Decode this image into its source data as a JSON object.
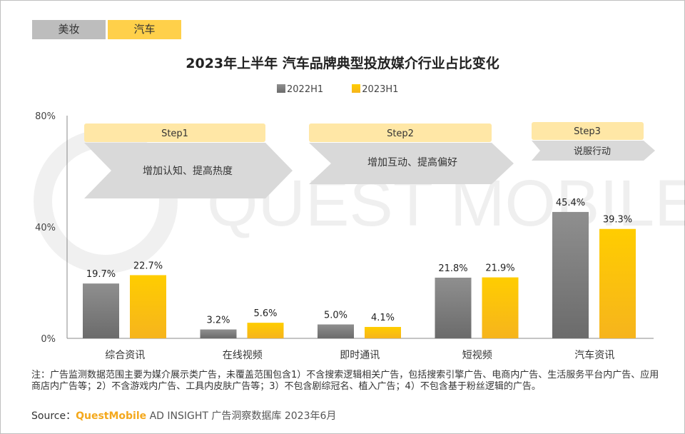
{
  "tabs": [
    {
      "label": "美妆",
      "active": false
    },
    {
      "label": "汽车",
      "active": true
    }
  ],
  "title": "2023年上半年 汽车品牌典型投放媒介行业占比变化",
  "watermark": "QUEST MOBILE",
  "colors": {
    "series_2022": "#7f7f7f",
    "series_2023": "#ffc61a",
    "step_label": "#ffe7a6",
    "step_arrow": "#d9d9d9"
  },
  "steps": [
    {
      "label": "Step1",
      "text": "增加认知、提高热度"
    },
    {
      "label": "Step2",
      "text": "增加互动、提高偏好"
    },
    {
      "label": "Step3",
      "text": "说服行动"
    }
  ],
  "chart_data": {
    "type": "bar",
    "categories": [
      "综合资讯",
      "在线视频",
      "即时通讯",
      "短视频",
      "汽车资讯"
    ],
    "series": [
      {
        "name": "2022H1",
        "values": [
          19.7,
          3.2,
          5.0,
          21.8,
          45.4
        ],
        "labels": [
          "19.7%",
          "3.2%",
          "5.0%",
          "21.8%",
          "45.4%"
        ]
      },
      {
        "name": "2023H1",
        "values": [
          22.7,
          5.6,
          4.1,
          21.9,
          39.3
        ],
        "labels": [
          "22.7%",
          "5.6%",
          "4.1%",
          "21.9%",
          "39.3%"
        ]
      }
    ],
    "yticks": [
      {
        "value": 0,
        "label": "0%"
      },
      {
        "value": 40,
        "label": "40%"
      },
      {
        "value": 80,
        "label": "80%"
      }
    ],
    "ylim": [
      0,
      80
    ],
    "legend": "top-center"
  },
  "note": "注：广告监测数据范围主要为媒介展示类广告，未覆盖范围包含1）不含搜索逻辑相关广告，包括搜索引擎广告、电商内广告、生活服务平台内广告、应用商店内广告等；2）不含游戏内广告、工具内皮肤广告等；3）不包含剧综冠名、植入广告；4）不包含基于粉丝逻辑的广告。",
  "source": {
    "prefix": "Source：",
    "brand": "QuestMobile",
    "rest": " AD INSIGHT 广告洞察数据库 2023年6月"
  }
}
